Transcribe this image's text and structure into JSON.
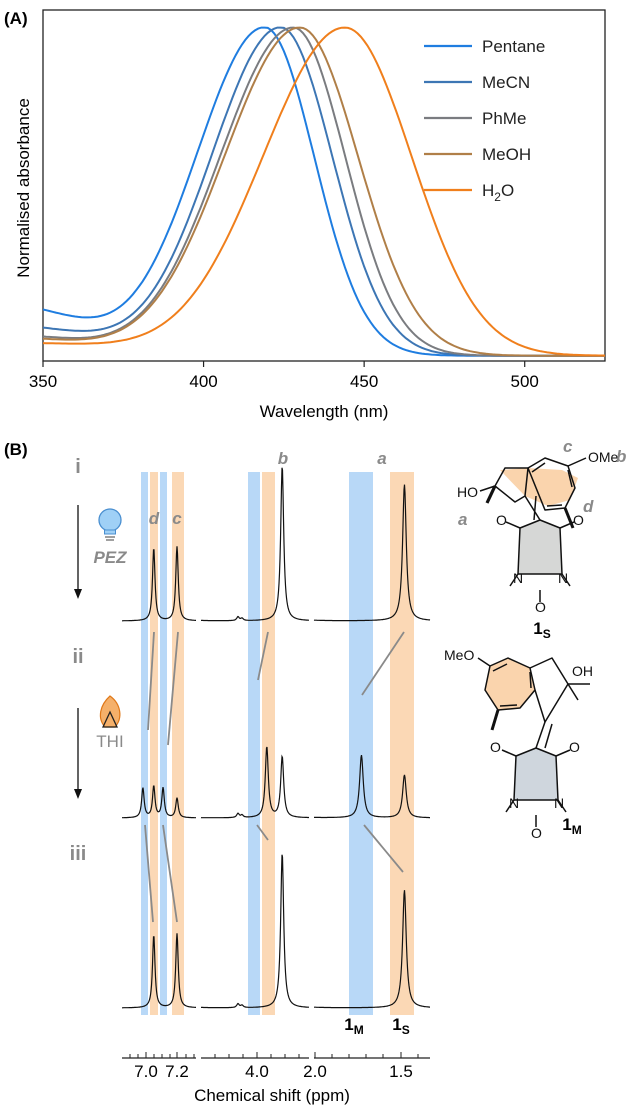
{
  "panelA": {
    "label": "(A)",
    "xlabel": "Wavelength (nm)",
    "ylabel": "Normalised absorbance",
    "xticks": [
      "350",
      "400",
      "450",
      "500"
    ]
  },
  "panelB": {
    "label": "(B)",
    "xlabel": "Chemical shift (ppm)",
    "stage_labels": [
      "i",
      "ii",
      "iii"
    ],
    "step1": "PEZ",
    "step2": "THI",
    "peak_letters": {
      "a": "a",
      "b": "b",
      "c": "c",
      "d": "d"
    },
    "ticks_aromatic": [
      "7.0",
      "7.2"
    ],
    "ticks_methoxy": [
      "4.0"
    ],
    "ticks_methyl": [
      "2.0",
      "1.5"
    ],
    "species": {
      "m_base": "1",
      "m_sub": "M",
      "s_base": "1",
      "s_sub": "S"
    },
    "structure_labels": {
      "ome": "OMe",
      "meo": "MeO",
      "ho": "HO",
      "oh": "OH",
      "o": "O",
      "n": "N",
      "a": "a",
      "b": "b",
      "c": "c",
      "d": "d"
    }
  },
  "colors": {
    "pentane": "#1f7de0",
    "mecn": "#3d76b4",
    "phme": "#7a7c80",
    "meoh": "#b07f48",
    "h2o": "#f07f1c",
    "band_blue": "#b8d8f7",
    "band_orange": "#fbd8b5"
  },
  "chart_data": [
    {
      "type": "line",
      "xlabel": "Wavelength (nm)",
      "ylabel": "Normalised absorbance",
      "xlim": [
        350,
        525
      ],
      "ylim": [
        0,
        1
      ],
      "legend_position": "top-right",
      "series": [
        {
          "name": "Pentane",
          "color": "#1f7de0",
          "peak": 419,
          "wl": 31.5,
          "wr": 23,
          "tail": 0.17,
          "tailc": 362,
          "tailw": 11
        },
        {
          "name": "MeCN",
          "color": "#3d76b4",
          "peak": 424,
          "wl": 32,
          "wr": 24,
          "tail": 0.1,
          "tailc": 365,
          "tailw": 12
        },
        {
          "name": "PhMe",
          "color": "#7a7c80",
          "peak": 428,
          "wl": 34,
          "wr": 24,
          "tail": 0.07,
          "tailc": 363,
          "tailw": 12
        },
        {
          "name": "MeOH",
          "color": "#b07f48",
          "peak": 430,
          "wl": 35,
          "wr": 27,
          "tail": 0.06,
          "tailc": 364,
          "tailw": 12
        },
        {
          "name": "H2O",
          "name_base": "H",
          "name_sub": "2",
          "name_tail": "O",
          "color": "#f07f1c",
          "peak": 444,
          "wl": 38,
          "wr": 31,
          "tail": 0.04,
          "tailc": 375,
          "tailw": 13
        }
      ]
    },
    {
      "type": "line",
      "title": "",
      "xlabel": "Chemical shift (ppm)",
      "spectra": [
        {
          "label": "i",
          "peaks": [
            {
              "assignment": "d",
              "species": "1S",
              "ppm": 7.05,
              "height": 0.47
            },
            {
              "assignment": "c",
              "species": "1S",
              "ppm": 7.2,
              "height": 0.48
            },
            {
              "assignment": "b",
              "species": "1S",
              "ppm": 3.82,
              "height": 1.0
            },
            {
              "assignment": "a",
              "species": "1S",
              "ppm": 1.48,
              "height": 0.88
            }
          ]
        },
        {
          "label": "ii",
          "peaks": [
            {
              "assignment": "d",
              "species": "1M",
              "ppm": 6.98,
              "height": 0.18
            },
            {
              "assignment": "d",
              "species": "1S",
              "ppm": 7.05,
              "height": 0.19
            },
            {
              "assignment": "c",
              "species": "1M",
              "ppm": 7.11,
              "height": 0.18
            },
            {
              "assignment": "c",
              "species": "1S",
              "ppm": 7.2,
              "height": 0.12
            },
            {
              "assignment": "b",
              "species": "1M",
              "ppm": 3.93,
              "height": 0.43
            },
            {
              "assignment": "b",
              "species": "1S",
              "ppm": 3.82,
              "height": 0.37
            },
            {
              "assignment": "a",
              "species": "1M",
              "ppm": 1.73,
              "height": 0.38
            },
            {
              "assignment": "a",
              "species": "1S",
              "ppm": 1.48,
              "height": 0.26
            }
          ]
        },
        {
          "label": "iii",
          "peaks": [
            {
              "assignment": "d",
              "species": "1S",
              "ppm": 7.05,
              "height": 0.47
            },
            {
              "assignment": "c",
              "species": "1S",
              "ppm": 7.2,
              "height": 0.48
            },
            {
              "assignment": "b",
              "species": "1S",
              "ppm": 3.82,
              "height": 1.0
            },
            {
              "assignment": "a",
              "species": "1S",
              "ppm": 1.48,
              "height": 0.76
            }
          ]
        }
      ]
    }
  ]
}
